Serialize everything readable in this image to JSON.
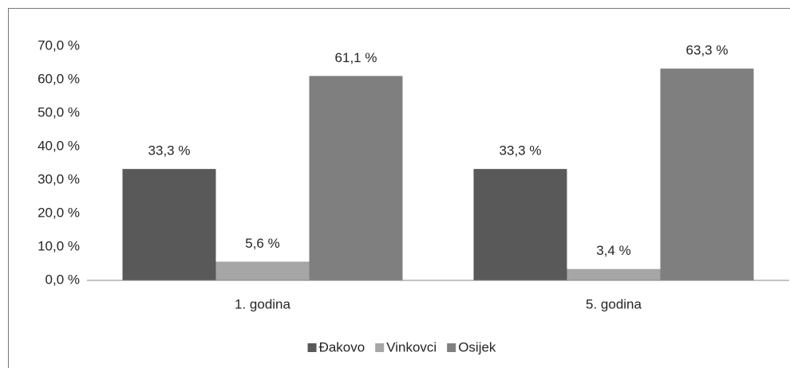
{
  "chart_data": {
    "type": "bar",
    "categories": [
      "1. godina",
      "5. godina"
    ],
    "series": [
      {
        "name": "Đakovo",
        "color": "#595959",
        "values": [
          33.3,
          33.3
        ],
        "value_labels": [
          "33,3 %",
          "33,3 %"
        ]
      },
      {
        "name": "Vinkovci",
        "color": "#a6a6a6",
        "values": [
          5.6,
          3.4
        ],
        "value_labels": [
          "5,6 %",
          "3,4 %"
        ]
      },
      {
        "name": "Osijek",
        "color": "#7f7f7f",
        "values": [
          61.1,
          63.3
        ],
        "value_labels": [
          "61,1 %",
          "63,3 %"
        ]
      }
    ],
    "ylim": [
      0,
      70
    ],
    "yticks": [
      {
        "value": 0,
        "label": "0,0 %"
      },
      {
        "value": 10,
        "label": "10,0 %"
      },
      {
        "value": 20,
        "label": "20,0 %"
      },
      {
        "value": 30,
        "label": "30,0 %"
      },
      {
        "value": 40,
        "label": "40,0 %"
      },
      {
        "value": 50,
        "label": "50,0 %"
      },
      {
        "value": 60,
        "label": "60,0 %"
      },
      {
        "value": 70,
        "label": "70,0 %"
      }
    ],
    "grid": false,
    "legend": "bottom"
  }
}
